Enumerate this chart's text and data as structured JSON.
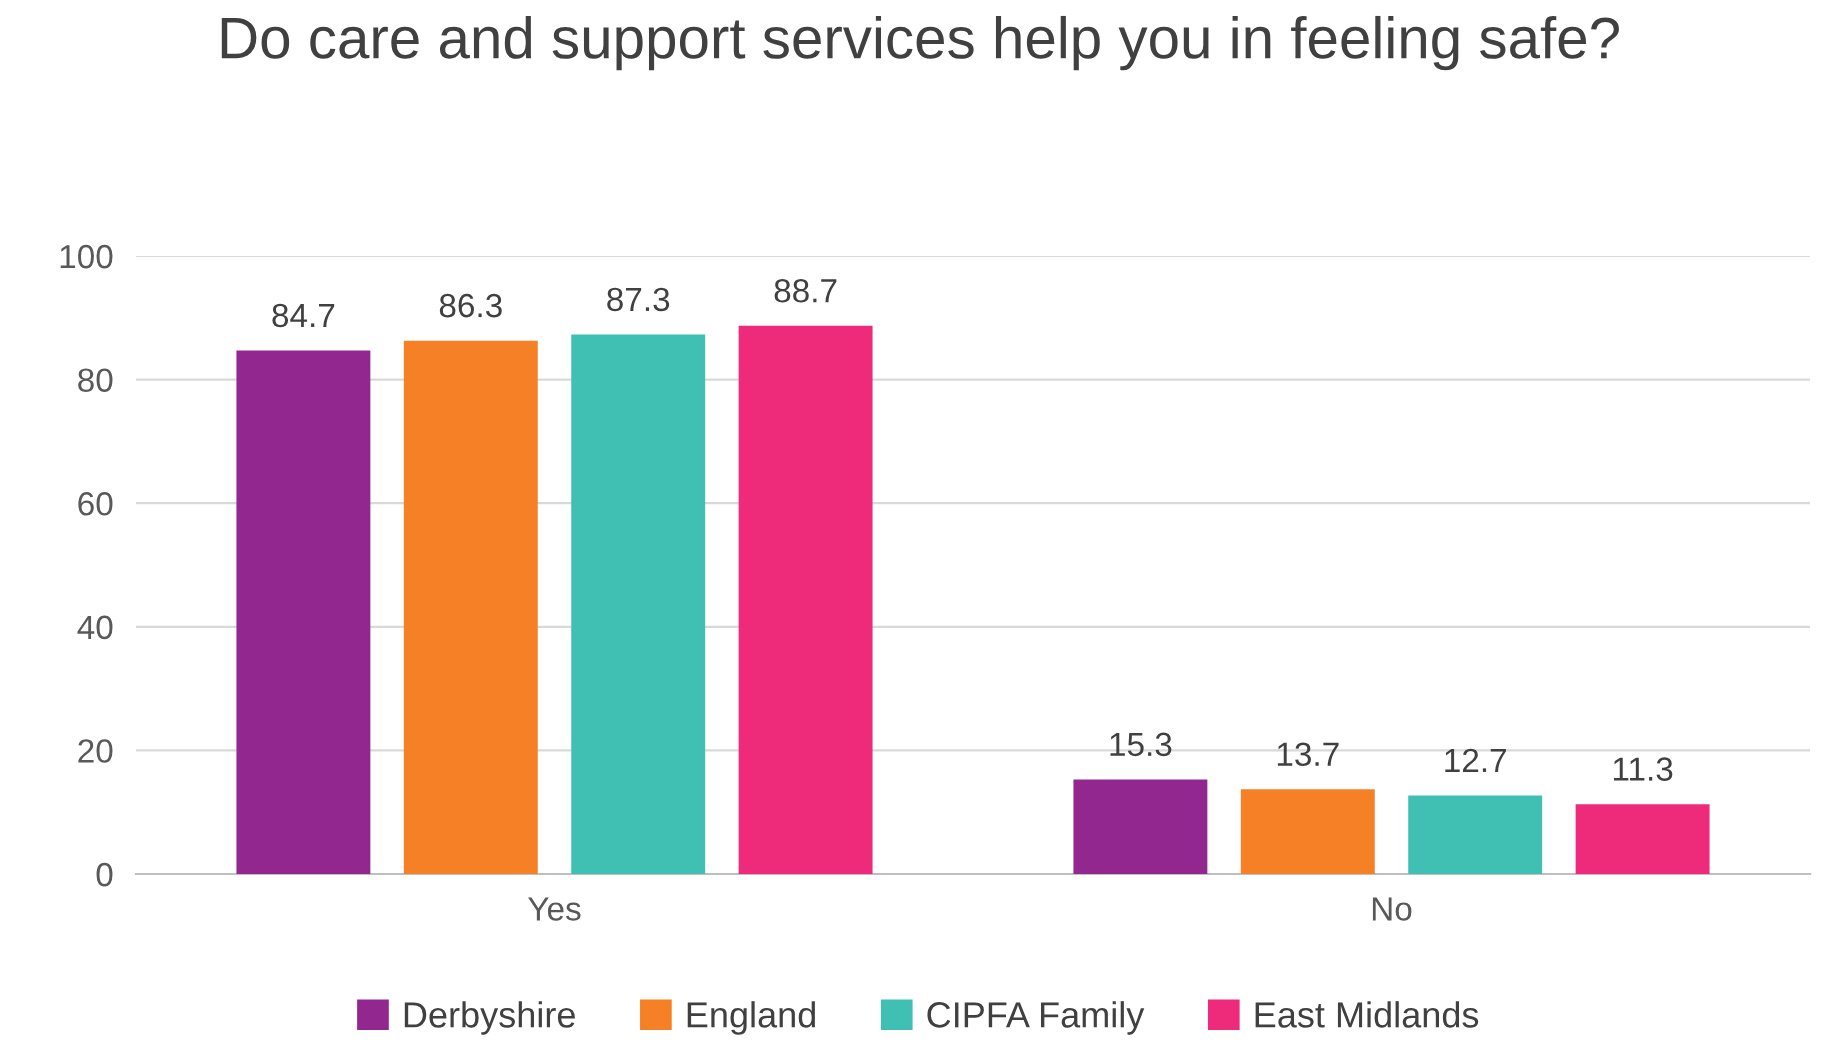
{
  "chart_data": {
    "type": "bar",
    "title": "Do care and support services help you in feeling safe?",
    "categories": [
      "Yes",
      "No"
    ],
    "series": [
      {
        "name": "Derbyshire",
        "color": "#92278f",
        "values": [
          84.7,
          15.3
        ]
      },
      {
        "name": "England",
        "color": "#f58025",
        "values": [
          86.3,
          13.7
        ]
      },
      {
        "name": "CIPFA Family",
        "color": "#40bfb3",
        "values": [
          87.3,
          12.7
        ]
      },
      {
        "name": "East Midlands",
        "color": "#ee2a7b",
        "values": [
          88.7,
          11.3
        ]
      }
    ],
    "ylim": [
      0,
      100
    ],
    "yticks": [
      0,
      20,
      40,
      60,
      80,
      100
    ],
    "grid": "y",
    "legend": "bottom",
    "data_labels": true
  }
}
